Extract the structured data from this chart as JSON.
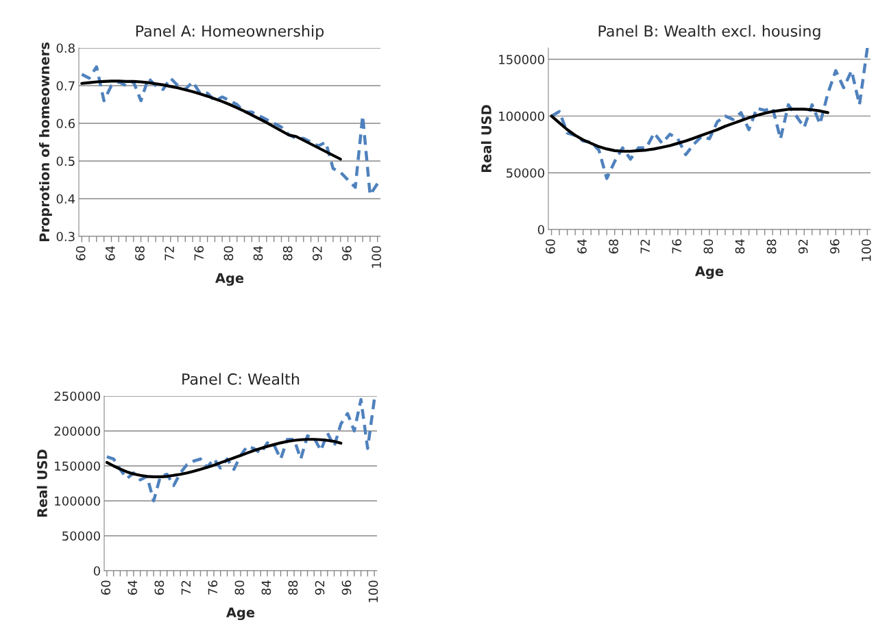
{
  "chart_data": [
    {
      "type": "line",
      "title": "Panel A: Homeownership",
      "xlabel": "Age",
      "ylabel": "Proprotion of homeowners",
      "grid": "y",
      "xlim": [
        59.6,
        100.4
      ],
      "xticks": [
        60,
        {
          "value": 61,
          "label": null
        },
        {
          "value": 62,
          "label": null
        },
        {
          "value": 63,
          "label": null
        },
        64,
        {
          "value": 65,
          "label": null
        },
        {
          "value": 66,
          "label": null
        },
        {
          "value": 67,
          "label": null
        },
        68,
        {
          "value": 69,
          "label": null
        },
        {
          "value": 70,
          "label": null
        },
        {
          "value": 71,
          "label": null
        },
        72,
        {
          "value": 73,
          "label": null
        },
        {
          "value": 74,
          "label": null
        },
        {
          "value": 75,
          "label": null
        },
        76,
        {
          "value": 77,
          "label": null
        },
        {
          "value": 78,
          "label": null
        },
        {
          "value": 79,
          "label": null
        },
        80,
        {
          "value": 81,
          "label": null
        },
        {
          "value": 82,
          "label": null
        },
        {
          "value": 83,
          "label": null
        },
        84,
        {
          "value": 85,
          "label": null
        },
        {
          "value": 86,
          "label": null
        },
        {
          "value": 87,
          "label": null
        },
        88,
        {
          "value": 89,
          "label": null
        },
        {
          "value": 90,
          "label": null
        },
        {
          "value": 91,
          "label": null
        },
        92,
        {
          "value": 93,
          "label": null
        },
        {
          "value": 94,
          "label": null
        },
        {
          "value": 95,
          "label": null
        },
        96,
        {
          "value": 97,
          "label": null
        },
        {
          "value": 98,
          "label": null
        },
        {
          "value": 99,
          "label": null
        },
        100
      ],
      "ylim": [
        0.3,
        0.8
      ],
      "yticks": [
        0.3,
        0.4,
        0.5,
        0.6,
        0.7,
        0.8
      ],
      "series": [
        {
          "color": "#4f81bd",
          "line_style": "dashed",
          "x": [
            60,
            61,
            62,
            63,
            64,
            65,
            66,
            67,
            68,
            69,
            70,
            71,
            72,
            73,
            74,
            75,
            76,
            77,
            78,
            79,
            80,
            81,
            82,
            83,
            84,
            85,
            86,
            87,
            88,
            89,
            90,
            91,
            92,
            93,
            94,
            95,
            96,
            97,
            98,
            99,
            100
          ],
          "values": [
            0.73,
            0.72,
            0.75,
            0.66,
            0.7,
            0.71,
            0.7,
            0.71,
            0.66,
            0.72,
            0.7,
            0.69,
            0.72,
            0.7,
            0.69,
            0.71,
            0.68,
            0.68,
            0.66,
            0.67,
            0.66,
            0.65,
            0.63,
            0.63,
            0.62,
            0.61,
            0.6,
            0.59,
            0.57,
            0.56,
            0.56,
            0.55,
            0.54,
            0.55,
            0.48,
            0.47,
            0.45,
            0.43,
            0.62,
            0.41,
            0.44
          ]
        },
        {
          "color": "#000000",
          "line_style": "solid",
          "x": [
            60,
            61,
            62,
            63,
            64,
            65,
            66,
            67,
            68,
            69,
            70,
            71,
            72,
            73,
            74,
            75,
            76,
            77,
            78,
            79,
            80,
            81,
            82,
            83,
            84,
            85,
            86,
            87,
            88,
            89,
            90,
            91,
            92,
            93,
            94,
            95
          ],
          "values": [
            0.706,
            0.708,
            0.71,
            0.711,
            0.712,
            0.712,
            0.711,
            0.711,
            0.71,
            0.708,
            0.705,
            0.702,
            0.698,
            0.694,
            0.689,
            0.684,
            0.678,
            0.672,
            0.665,
            0.658,
            0.65,
            0.641,
            0.632,
            0.622,
            0.612,
            0.602,
            0.591,
            0.58,
            0.569,
            0.565,
            0.555,
            0.545,
            0.535,
            0.525,
            0.515,
            0.505
          ]
        }
      ]
    },
    {
      "type": "line",
      "title": "Panel B: Wealth excl. housing",
      "xlabel": "Age",
      "ylabel": "Real USD",
      "grid": "y",
      "xlim": [
        59.6,
        100.4
      ],
      "xticks": [
        60,
        {
          "value": 61,
          "label": null
        },
        {
          "value": 62,
          "label": null
        },
        {
          "value": 63,
          "label": null
        },
        64,
        {
          "value": 65,
          "label": null
        },
        {
          "value": 66,
          "label": null
        },
        {
          "value": 67,
          "label": null
        },
        68,
        {
          "value": 69,
          "label": null
        },
        {
          "value": 70,
          "label": null
        },
        {
          "value": 71,
          "label": null
        },
        72,
        {
          "value": 73,
          "label": null
        },
        {
          "value": 74,
          "label": null
        },
        {
          "value": 75,
          "label": null
        },
        76,
        {
          "value": 77,
          "label": null
        },
        {
          "value": 78,
          "label": null
        },
        {
          "value": 79,
          "label": null
        },
        80,
        {
          "value": 81,
          "label": null
        },
        {
          "value": 82,
          "label": null
        },
        {
          "value": 83,
          "label": null
        },
        84,
        {
          "value": 85,
          "label": null
        },
        {
          "value": 86,
          "label": null
        },
        {
          "value": 87,
          "label": null
        },
        88,
        {
          "value": 89,
          "label": null
        },
        {
          "value": 90,
          "label": null
        },
        {
          "value": 91,
          "label": null
        },
        92,
        {
          "value": 93,
          "label": null
        },
        {
          "value": 94,
          "label": null
        },
        {
          "value": 95,
          "label": null
        },
        96,
        {
          "value": 97,
          "label": null
        },
        {
          "value": 98,
          "label": null
        },
        {
          "value": 99,
          "label": null
        },
        100
      ],
      "ylim": [
        0,
        160000
      ],
      "yticks": [
        0,
        50000,
        100000,
        150000
      ],
      "series": [
        {
          "color": "#4f81bd",
          "line_style": "dashed",
          "x": [
            60,
            61,
            62,
            63,
            64,
            65,
            66,
            67,
            68,
            69,
            70,
            71,
            72,
            73,
            74,
            75,
            76,
            77,
            78,
            79,
            80,
            81,
            82,
            83,
            84,
            85,
            86,
            87,
            88,
            89,
            90,
            91,
            92,
            93,
            94,
            95,
            96,
            97,
            98,
            99,
            100
          ],
          "values": [
            100000,
            104000,
            85000,
            83000,
            78000,
            77000,
            70000,
            45000,
            60000,
            72000,
            62000,
            72000,
            72000,
            85000,
            76000,
            84000,
            80000,
            66000,
            75000,
            82000,
            80000,
            95000,
            100000,
            97000,
            103000,
            88000,
            107000,
            105000,
            107000,
            80000,
            110000,
            100000,
            90000,
            110000,
            93000,
            120000,
            140000,
            125000,
            140000,
            110000,
            160000
          ]
        },
        {
          "color": "#000000",
          "line_style": "solid",
          "x": [
            60,
            61,
            62,
            63,
            64,
            65,
            66,
            67,
            68,
            69,
            70,
            71,
            72,
            73,
            74,
            75,
            76,
            77,
            78,
            79,
            80,
            81,
            82,
            83,
            84,
            85,
            86,
            87,
            88,
            89,
            90,
            91,
            92,
            93,
            94,
            95
          ],
          "values": [
            100000,
            94000,
            88000,
            83000,
            79000,
            76000,
            73000,
            71000,
            69500,
            69000,
            69000,
            69500,
            70000,
            71000,
            72500,
            74000,
            76000,
            78000,
            80500,
            83000,
            85500,
            88000,
            91000,
            93500,
            96000,
            98500,
            100500,
            102500,
            104000,
            105000,
            106000,
            106000,
            106000,
            105500,
            104500,
            103000
          ]
        }
      ]
    },
    {
      "type": "line",
      "title": "Panel C: Wealth",
      "xlabel": "Age",
      "ylabel": "Real USD",
      "grid": "y",
      "xlim": [
        59.6,
        100.4
      ],
      "xticks": [
        60,
        {
          "value": 61,
          "label": null
        },
        {
          "value": 62,
          "label": null
        },
        {
          "value": 63,
          "label": null
        },
        64,
        {
          "value": 65,
          "label": null
        },
        {
          "value": 66,
          "label": null
        },
        {
          "value": 67,
          "label": null
        },
        68,
        {
          "value": 69,
          "label": null
        },
        {
          "value": 70,
          "label": null
        },
        {
          "value": 71,
          "label": null
        },
        72,
        {
          "value": 73,
          "label": null
        },
        {
          "value": 74,
          "label": null
        },
        {
          "value": 75,
          "label": null
        },
        76,
        {
          "value": 77,
          "label": null
        },
        {
          "value": 78,
          "label": null
        },
        {
          "value": 79,
          "label": null
        },
        80,
        {
          "value": 81,
          "label": null
        },
        {
          "value": 82,
          "label": null
        },
        {
          "value": 83,
          "label": null
        },
        84,
        {
          "value": 85,
          "label": null
        },
        {
          "value": 86,
          "label": null
        },
        {
          "value": 87,
          "label": null
        },
        88,
        {
          "value": 89,
          "label": null
        },
        {
          "value": 90,
          "label": null
        },
        {
          "value": 91,
          "label": null
        },
        92,
        {
          "value": 93,
          "label": null
        },
        {
          "value": 94,
          "label": null
        },
        {
          "value": 95,
          "label": null
        },
        96,
        {
          "value": 97,
          "label": null
        },
        {
          "value": 98,
          "label": null
        },
        {
          "value": 99,
          "label": null
        },
        100
      ],
      "ylim": [
        0,
        250000
      ],
      "yticks": [
        0,
        50000,
        100000,
        150000,
        200000,
        250000
      ],
      "series": [
        {
          "color": "#4f81bd",
          "line_style": "dashed",
          "x": [
            60,
            61,
            62,
            63,
            64,
            65,
            66,
            67,
            68,
            69,
            70,
            71,
            72,
            73,
            74,
            75,
            76,
            77,
            78,
            79,
            80,
            81,
            82,
            83,
            84,
            85,
            86,
            87,
            88,
            89,
            90,
            91,
            92,
            93,
            94,
            95,
            96,
            97,
            98,
            99,
            100
          ],
          "values": [
            163000,
            160000,
            145000,
            132000,
            140000,
            130000,
            135000,
            100000,
            135000,
            138000,
            122000,
            140000,
            152000,
            157000,
            160000,
            148000,
            160000,
            147000,
            160000,
            145000,
            165000,
            178000,
            175000,
            168000,
            183000,
            180000,
            160000,
            188000,
            188000,
            160000,
            193000,
            190000,
            172000,
            197000,
            178000,
            210000,
            225000,
            200000,
            245000,
            175000,
            245000
          ]
        },
        {
          "color": "#000000",
          "line_style": "solid",
          "x": [
            60,
            61,
            62,
            63,
            64,
            65,
            66,
            67,
            68,
            69,
            70,
            71,
            72,
            73,
            74,
            75,
            76,
            77,
            78,
            79,
            80,
            81,
            82,
            83,
            84,
            85,
            86,
            87,
            88,
            89,
            90,
            91,
            92,
            93,
            94,
            95
          ],
          "values": [
            155000,
            150000,
            145500,
            141500,
            138500,
            136500,
            135000,
            134500,
            134500,
            135000,
            136500,
            138000,
            140000,
            142500,
            145000,
            148000,
            151000,
            154500,
            158000,
            161500,
            165000,
            168500,
            172000,
            175000,
            178000,
            180500,
            183000,
            185000,
            186500,
            187500,
            188000,
            188000,
            187500,
            186500,
            185000,
            182500
          ]
        }
      ]
    }
  ]
}
